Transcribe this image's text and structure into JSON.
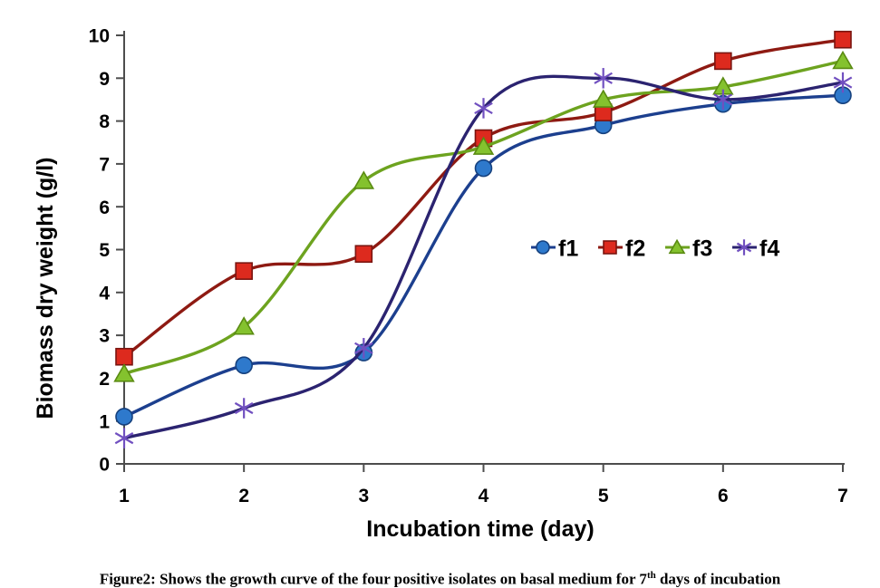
{
  "chart_data": {
    "type": "line",
    "title": "",
    "xlabel": "Incubation time (day)",
    "ylabel": "Biomass dry weight (g/l)",
    "x": [
      1,
      2,
      3,
      4,
      5,
      6,
      7
    ],
    "x_tick_labels": [
      "1",
      "2",
      "3",
      "4",
      "5",
      "6",
      "7"
    ],
    "y_tick_labels": [
      "0",
      "1",
      "2",
      "3",
      "4",
      "5",
      "6",
      "7",
      "8",
      "9",
      "10"
    ],
    "xlim": [
      1,
      7
    ],
    "ylim": [
      0,
      10
    ],
    "grid": false,
    "smooth_lines": true,
    "legend_position": "inside-middle-right",
    "axis_color": "#4d4d4d",
    "text_color": "#000000",
    "series": [
      {
        "name": "f1",
        "marker": "circle",
        "marker_color": "#2e79cc",
        "marker_edge": "#16417e",
        "line_color": "#1c3f8e",
        "values": [
          1.1,
          2.3,
          2.6,
          6.9,
          7.9,
          8.4,
          8.6
        ]
      },
      {
        "name": "f2",
        "marker": "square",
        "marker_color": "#dd2a1e",
        "marker_edge": "#7a1510",
        "line_color": "#8e1a12",
        "values": [
          2.5,
          4.5,
          4.9,
          7.6,
          8.2,
          9.4,
          9.9
        ]
      },
      {
        "name": "f3",
        "marker": "triangle",
        "marker_color": "#84c22e",
        "marker_edge": "#5a8b12",
        "line_color": "#6da31f",
        "values": [
          2.1,
          3.2,
          6.6,
          7.4,
          8.5,
          8.8,
          9.4
        ]
      },
      {
        "name": "f4",
        "marker": "asterisk",
        "marker_color": "#7150c0",
        "marker_edge": "#7150c0",
        "line_color": "#2b2370",
        "values": [
          0.6,
          1.3,
          2.7,
          8.3,
          9.0,
          8.5,
          8.9
        ]
      }
    ]
  },
  "caption": {
    "prefix": "Figure2: Shows the growth curve of the four positive isolates on basal medium for 7",
    "superscript": "th",
    "suffix": " days of incubation"
  }
}
